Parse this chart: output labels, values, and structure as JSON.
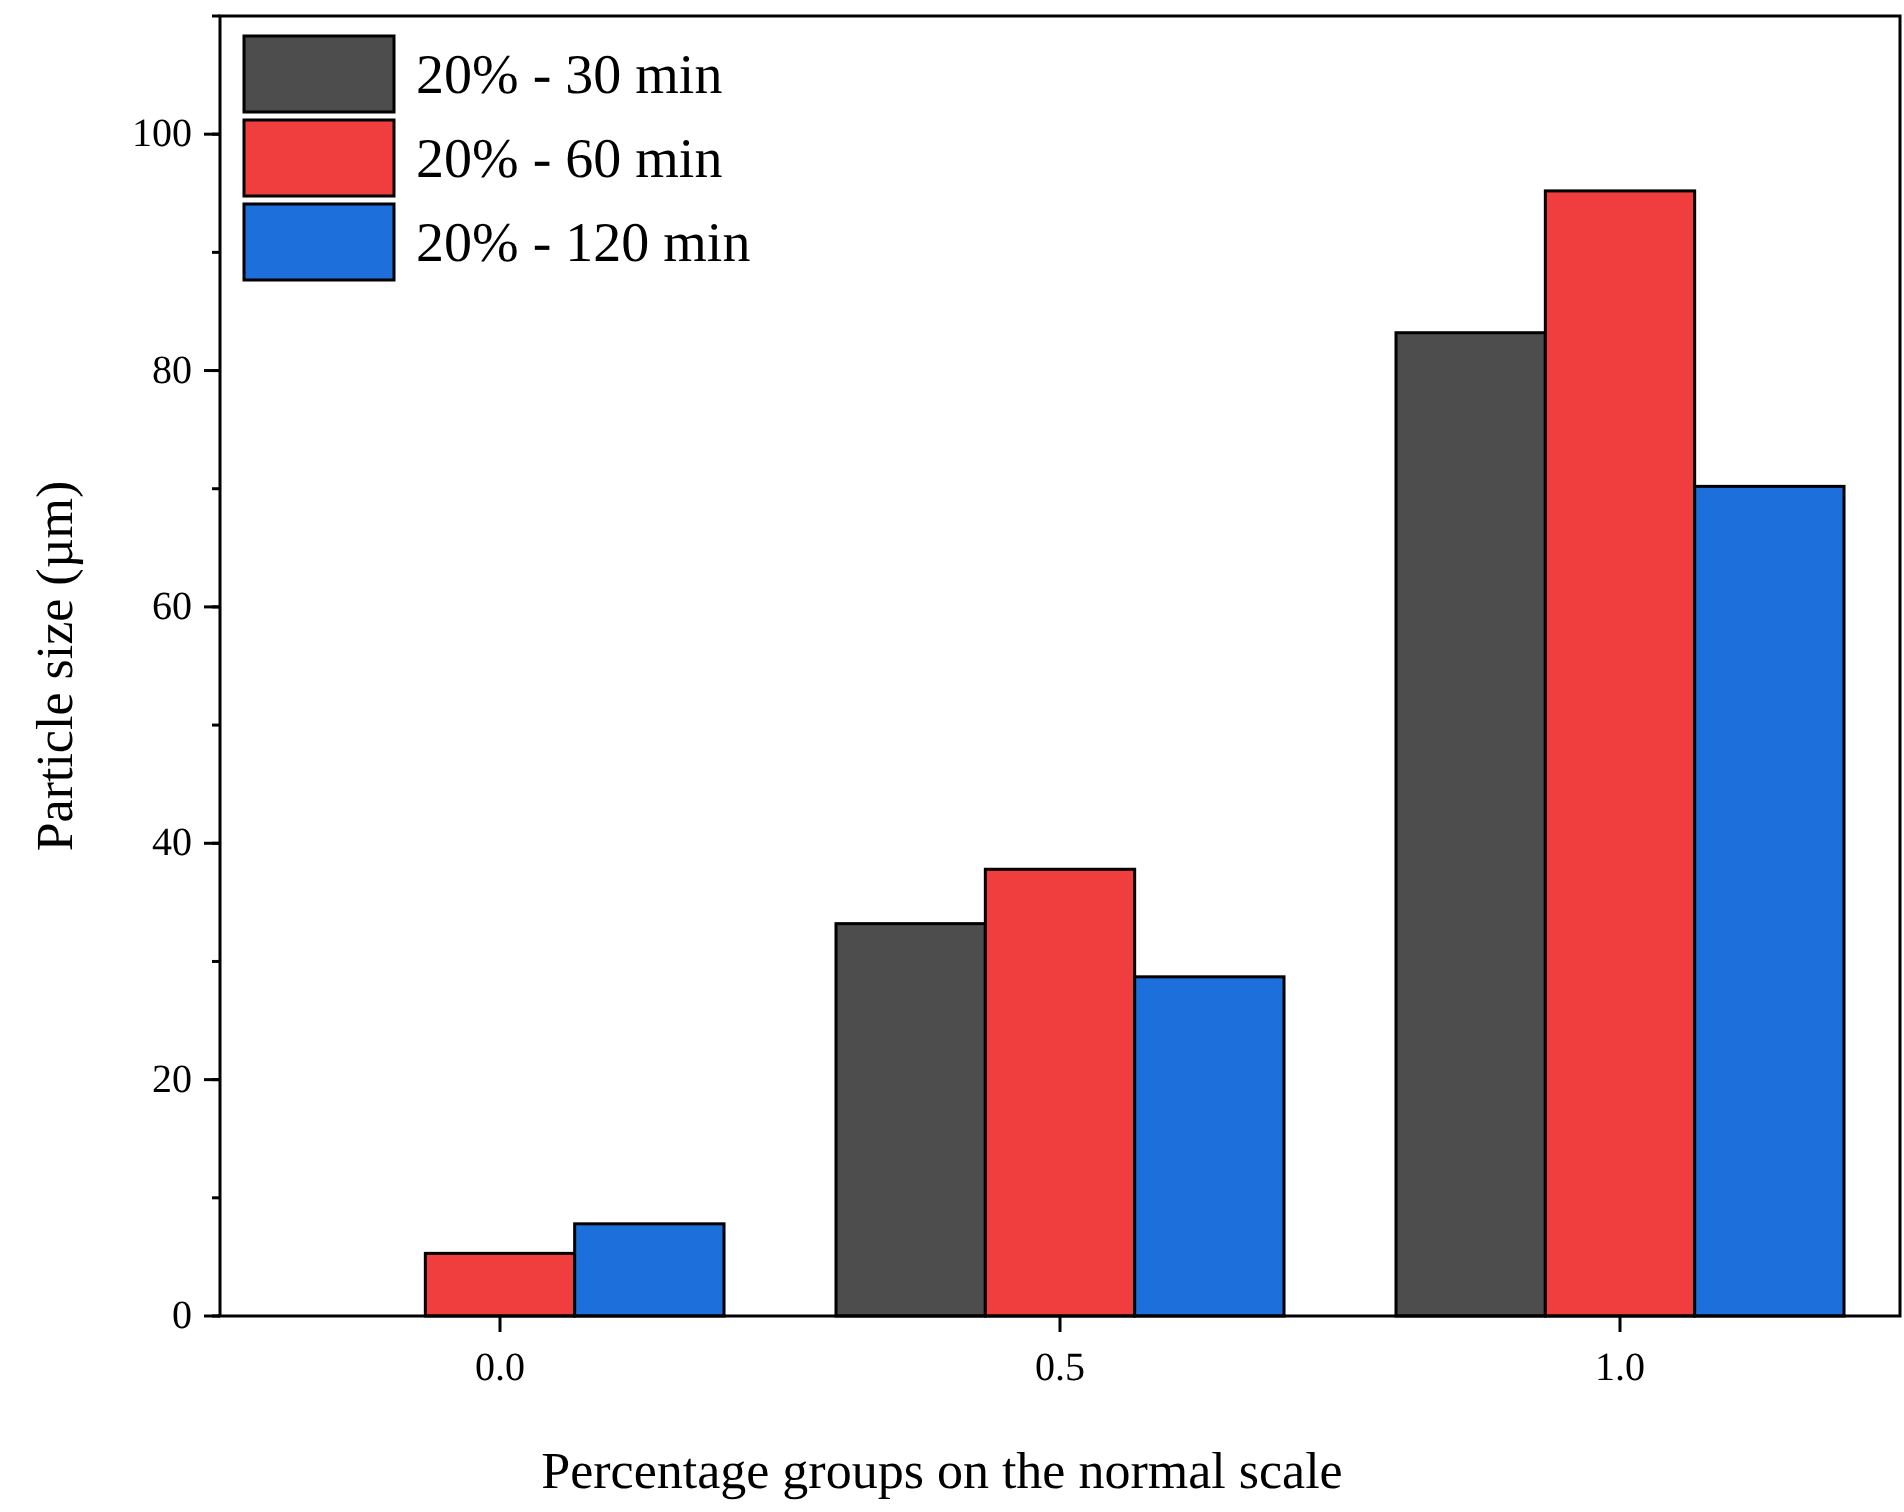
{
  "chart_data": {
    "type": "bar",
    "xlabel": "Percentage groups on the normal scale",
    "ylabel": "Particle size (µm)",
    "categories": [
      "0.0",
      "0.5",
      "1.0"
    ],
    "series": [
      {
        "name": "20% - 30 min",
        "color": "#4d4d4d",
        "values": [
          null,
          33.2,
          83.2
        ]
      },
      {
        "name": "20% - 60 min",
        "color": "#f03e3e",
        "values": [
          5.3,
          37.8,
          95.2
        ]
      },
      {
        "name": "20% - 120 min",
        "color": "#1d6fdc",
        "values": [
          7.8,
          28.7,
          70.2
        ]
      }
    ],
    "ylim": [
      0,
      110
    ],
    "yticks": [
      0,
      20,
      40,
      60,
      80,
      100
    ],
    "grid": false,
    "legend": "top left"
  }
}
